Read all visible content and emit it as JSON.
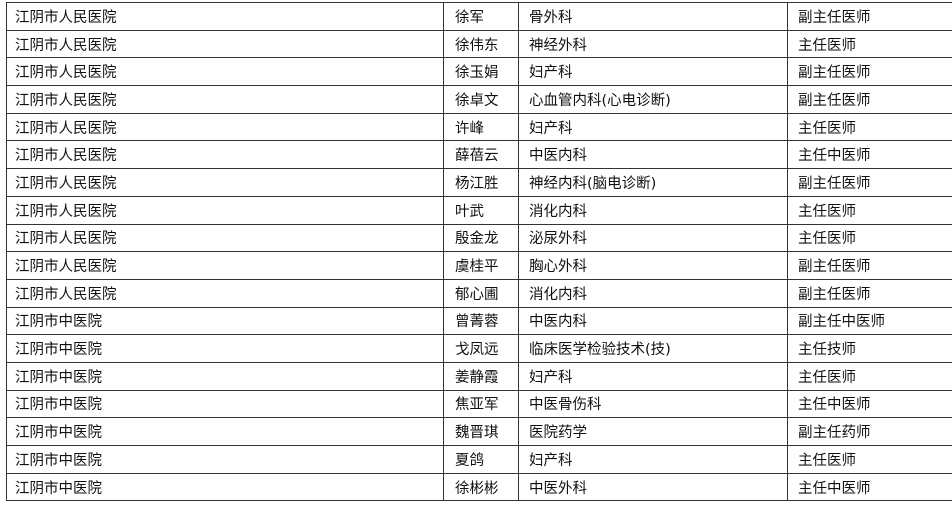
{
  "rows": [
    [
      "江阴市人民医院",
      "徐军",
      "骨外科",
      "副主任医师"
    ],
    [
      "江阴市人民医院",
      "徐伟东",
      "神经外科",
      "主任医师"
    ],
    [
      "江阴市人民医院",
      "徐玉娟",
      "妇产科",
      "副主任医师"
    ],
    [
      "江阴市人民医院",
      "徐卓文",
      "心血管内科(心电诊断)",
      "副主任医师"
    ],
    [
      "江阴市人民医院",
      "许峰",
      "妇产科",
      "主任医师"
    ],
    [
      "江阴市人民医院",
      "薛蓓云",
      "中医内科",
      "主任中医师"
    ],
    [
      "江阴市人民医院",
      "杨江胜",
      "神经内科(脑电诊断)",
      "副主任医师"
    ],
    [
      "江阴市人民医院",
      "叶武",
      "消化内科",
      "主任医师"
    ],
    [
      "江阴市人民医院",
      "殷金龙",
      "泌尿外科",
      "主任医师"
    ],
    [
      "江阴市人民医院",
      "虞桂平",
      "胸心外科",
      "副主任医师"
    ],
    [
      "江阴市人民医院",
      "郁心圃",
      "消化内科",
      "副主任医师"
    ],
    [
      "江阴市中医院",
      "曾菁蓉",
      "中医内科",
      "副主任中医师"
    ],
    [
      "江阴市中医院",
      "戈凤远",
      "临床医学检验技术(技)",
      "主任技师"
    ],
    [
      "江阴市中医院",
      "姜静霞",
      "妇产科",
      "主任医师"
    ],
    [
      "江阴市中医院",
      "焦亚军",
      "中医骨伤科",
      "主任中医师"
    ],
    [
      "江阴市中医院",
      "魏晋琪",
      "医院药学",
      "副主任药师"
    ],
    [
      "江阴市中医院",
      "夏鸽",
      "妇产科",
      "主任医师"
    ],
    [
      "江阴市中医院",
      "徐彬彬",
      "中医外科",
      "主任中医师"
    ]
  ]
}
